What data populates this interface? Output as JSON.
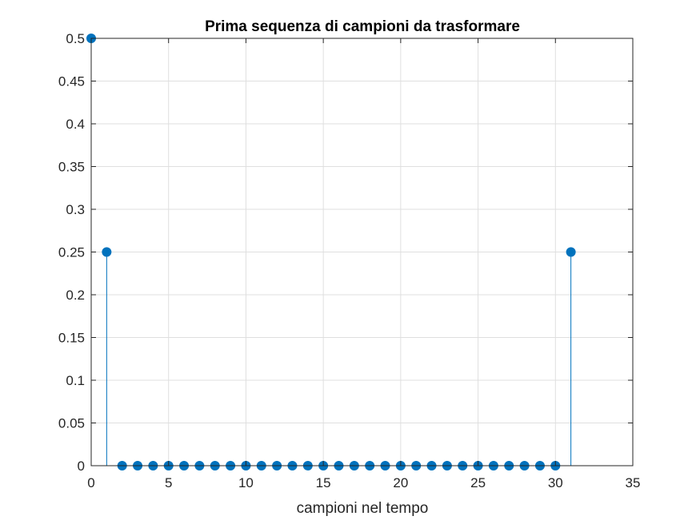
{
  "chart_data": {
    "type": "stem",
    "title": "Prima sequenza di campioni da trasformare",
    "xlabel": "campioni nel tempo",
    "ylabel": "",
    "xlim": [
      0,
      35
    ],
    "ylim": [
      0,
      0.5
    ],
    "xticks": [
      0,
      5,
      10,
      15,
      20,
      25,
      30,
      35
    ],
    "xtick_labels": [
      "0",
      "5",
      "10",
      "15",
      "20",
      "25",
      "30",
      "35"
    ],
    "yticks": [
      0,
      0.05,
      0.1,
      0.15,
      0.2,
      0.25,
      0.3,
      0.35,
      0.4,
      0.45,
      0.5
    ],
    "ytick_labels": [
      "0",
      "0.05",
      "0.1",
      "0.15",
      "0.2",
      "0.25",
      "0.3",
      "0.35",
      "0.4",
      "0.45",
      "0.5"
    ],
    "grid": true,
    "box": true,
    "series_color": "#0072BD",
    "x": [
      0,
      1,
      2,
      3,
      4,
      5,
      6,
      7,
      8,
      9,
      10,
      11,
      12,
      13,
      14,
      15,
      16,
      17,
      18,
      19,
      20,
      21,
      22,
      23,
      24,
      25,
      26,
      27,
      28,
      29,
      30,
      31
    ],
    "values": [
      0.5,
      0.25,
      0,
      0,
      0,
      0,
      0,
      0,
      0,
      0,
      0,
      0,
      0,
      0,
      0,
      0,
      0,
      0,
      0,
      0,
      0,
      0,
      0,
      0,
      0,
      0,
      0,
      0,
      0,
      0,
      0,
      0.25
    ]
  }
}
